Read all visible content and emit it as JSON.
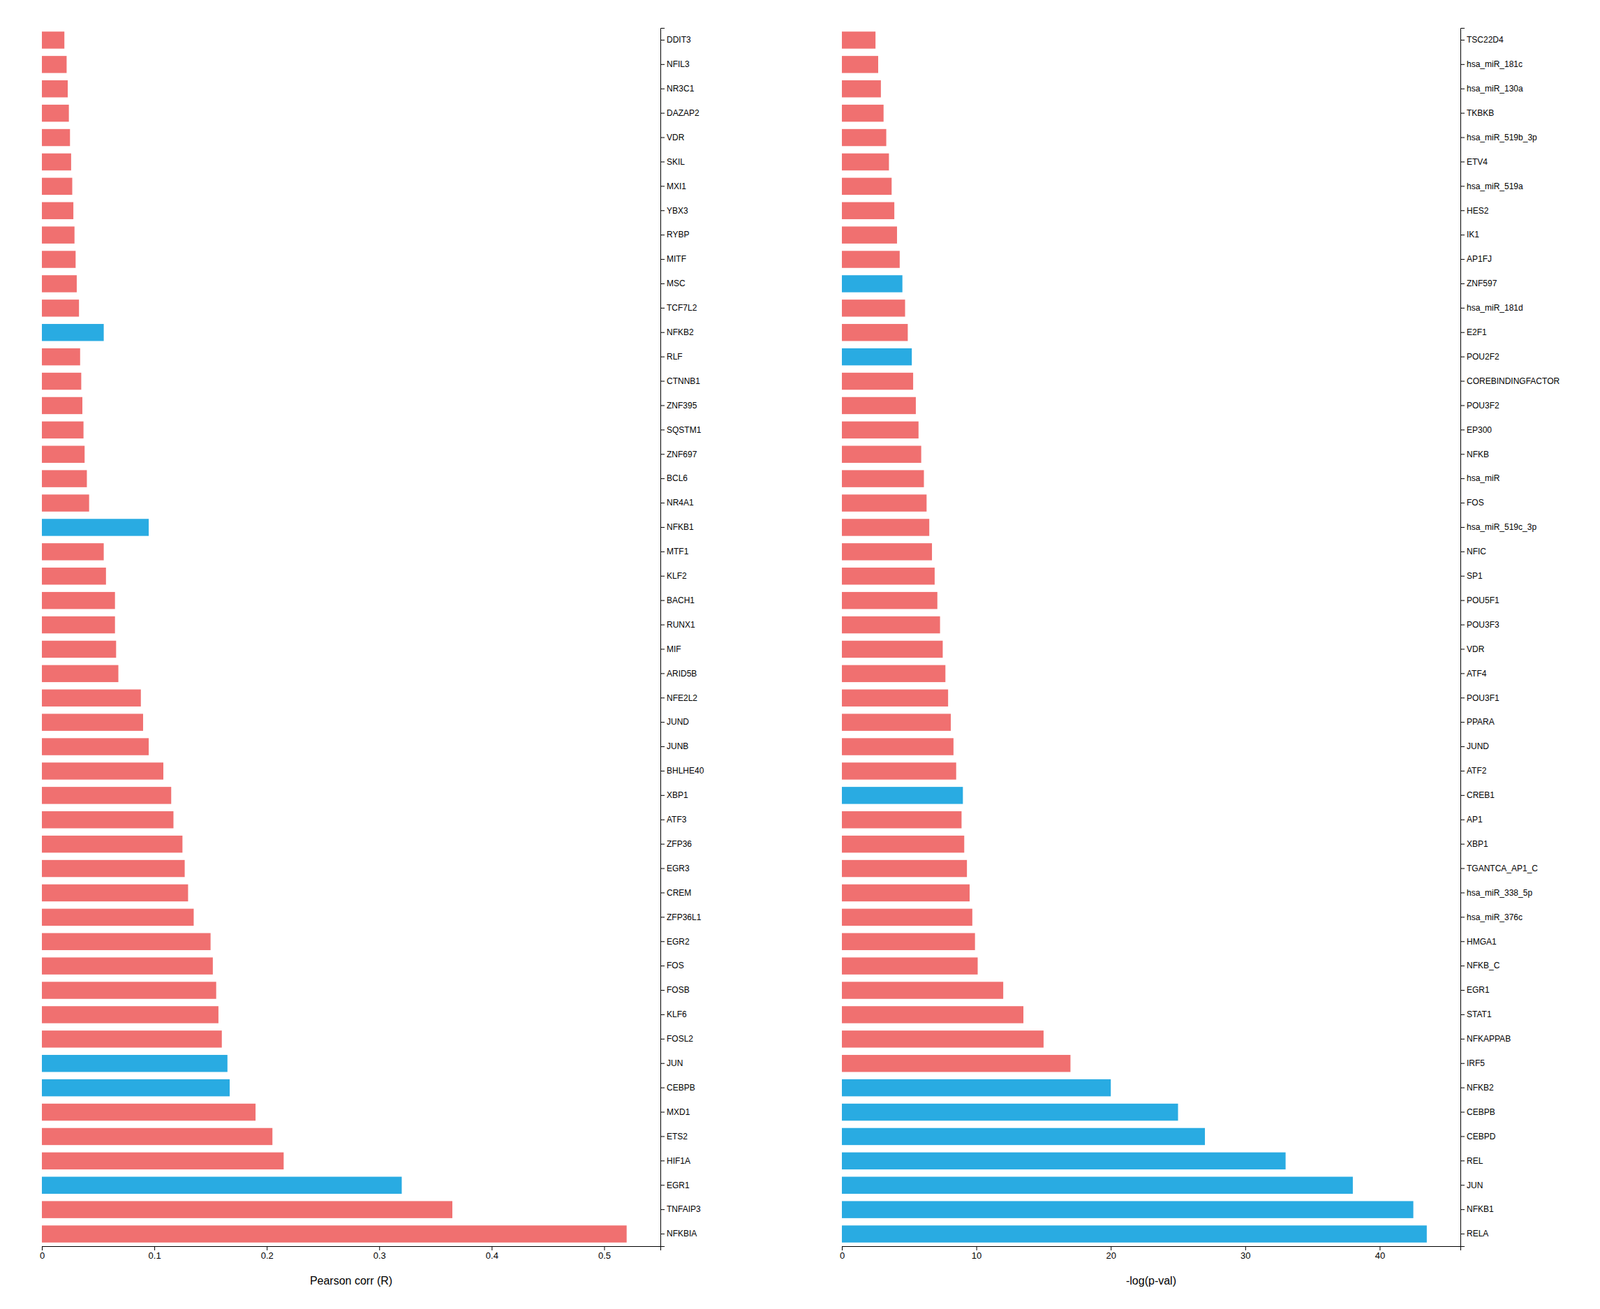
{
  "chart_data": [
    {
      "type": "bar",
      "orientation": "horizontal",
      "xlabel": "Pearson corr (R)",
      "categories": [
        "DDIT3",
        "NFIL3",
        "NR3C1",
        "DAZAP2",
        "VDR",
        "SKIL",
        "MXI1",
        "YBX3",
        "RYBP",
        "MITF",
        "MSC",
        "TCF7L2",
        "NFKB2",
        "RLF",
        "CTNNB1",
        "ZNF395",
        "SQSTM1",
        "ZNF697",
        "BCL6",
        "NR4A1",
        "NFKB1",
        "MTF1",
        "KLF2",
        "BACH1",
        "RUNX1",
        "MIF",
        "ARID5B",
        "NFE2L2",
        "JUND",
        "JUNB",
        "BHLHE40",
        "XBP1",
        "ATF3",
        "ZFP36",
        "EGR3",
        "CREM",
        "ZFP36L1",
        "EGR2",
        "FOS",
        "FOSB",
        "KLF6",
        "FOSL2",
        "JUN",
        "CEBPB",
        "MXD1",
        "ETS2",
        "HIF1A",
        "EGR1",
        "TNFAIP3",
        "NFKBIA"
      ],
      "values": [
        0.02,
        0.022,
        0.023,
        0.024,
        0.025,
        0.026,
        0.027,
        0.028,
        0.029,
        0.03,
        0.031,
        0.033,
        0.055,
        0.034,
        0.035,
        0.036,
        0.037,
        0.038,
        0.04,
        0.042,
        0.095,
        0.055,
        0.057,
        0.065,
        0.065,
        0.066,
        0.068,
        0.088,
        0.09,
        0.095,
        0.108,
        0.115,
        0.117,
        0.125,
        0.127,
        0.13,
        0.135,
        0.15,
        0.152,
        0.155,
        0.157,
        0.16,
        0.165,
        0.167,
        0.19,
        0.205,
        0.215,
        0.32,
        0.365,
        0.52
      ],
      "colors": [
        "#F07070",
        "#F07070",
        "#F07070",
        "#F07070",
        "#F07070",
        "#F07070",
        "#F07070",
        "#F07070",
        "#F07070",
        "#F07070",
        "#F07070",
        "#F07070",
        "#29ABE2",
        "#F07070",
        "#F07070",
        "#F07070",
        "#F07070",
        "#F07070",
        "#F07070",
        "#F07070",
        "#29ABE2",
        "#F07070",
        "#F07070",
        "#F07070",
        "#F07070",
        "#F07070",
        "#F07070",
        "#F07070",
        "#F07070",
        "#F07070",
        "#F07070",
        "#F07070",
        "#F07070",
        "#F07070",
        "#F07070",
        "#F07070",
        "#F07070",
        "#F07070",
        "#F07070",
        "#F07070",
        "#F07070",
        "#F07070",
        "#29ABE2",
        "#29ABE2",
        "#F07070",
        "#F07070",
        "#F07070",
        "#29ABE2",
        "#F07070",
        "#F07070"
      ],
      "xlim": [
        0,
        0.55
      ],
      "xticks": [
        0,
        0.1,
        0.2,
        0.3,
        0.4,
        0.5
      ]
    },
    {
      "type": "bar",
      "orientation": "horizontal",
      "xlabel": "-log(p-val)",
      "categories": [
        "TSC22D4",
        "hsa_miR_181c",
        "hsa_miR_130a",
        "TKBKB",
        "hsa_miR_519b_3p",
        "ETV4",
        "hsa_miR_519a",
        "HES2",
        "IK1",
        "AP1FJ",
        "ZNF597",
        "hsa_miR_181d",
        "E2F1",
        "POU2F2",
        "COREBINDINGFACTOR",
        "POU3F2",
        "EP300",
        "NFKB",
        "hsa_miR",
        "FOS",
        "hsa_miR_519c_3p",
        "NFIC",
        "SP1",
        "POU5F1",
        "POU3F3",
        "VDR",
        "ATF4",
        "POU3F1",
        "PPARA",
        "JUND",
        "ATF2",
        "CREB1",
        "AP1",
        "XBP1",
        "TGANTCA_AP1_C",
        "hsa_miR_338_5p",
        "hsa_miR_376c",
        "HMGA1",
        "NFKB_C",
        "EGR1",
        "STAT1",
        "NFKAPPAB",
        "IRF5",
        "NFKB2",
        "CEBPB",
        "CEBPD",
        "REL",
        "JUN",
        "NFKB1",
        "RELA"
      ],
      "values": [
        2.5,
        2.7,
        2.9,
        3.1,
        3.3,
        3.5,
        3.7,
        3.9,
        4.1,
        4.3,
        4.5,
        4.7,
        4.9,
        5.2,
        5.3,
        5.5,
        5.7,
        5.9,
        6.1,
        6.3,
        6.5,
        6.7,
        6.9,
        7.1,
        7.3,
        7.5,
        7.7,
        7.9,
        8.1,
        8.3,
        8.5,
        9.0,
        8.9,
        9.1,
        9.3,
        9.5,
        9.7,
        9.9,
        10.1,
        12.0,
        13.5,
        15.0,
        17.0,
        20.0,
        25.0,
        27.0,
        33.0,
        38.0,
        42.5,
        43.5
      ],
      "colors": [
        "#F07070",
        "#F07070",
        "#F07070",
        "#F07070",
        "#F07070",
        "#F07070",
        "#F07070",
        "#F07070",
        "#F07070",
        "#F07070",
        "#29ABE2",
        "#F07070",
        "#F07070",
        "#29ABE2",
        "#F07070",
        "#F07070",
        "#F07070",
        "#F07070",
        "#F07070",
        "#F07070",
        "#F07070",
        "#F07070",
        "#F07070",
        "#F07070",
        "#F07070",
        "#F07070",
        "#F07070",
        "#F07070",
        "#F07070",
        "#F07070",
        "#F07070",
        "#29ABE2",
        "#F07070",
        "#F07070",
        "#F07070",
        "#F07070",
        "#F07070",
        "#F07070",
        "#F07070",
        "#F07070",
        "#F07070",
        "#F07070",
        "#F07070",
        "#29ABE2",
        "#29ABE2",
        "#29ABE2",
        "#29ABE2",
        "#29ABE2",
        "#29ABE2",
        "#29ABE2"
      ],
      "xlim": [
        0,
        46
      ],
      "xticks": [
        0,
        10,
        20,
        30,
        40
      ]
    }
  ]
}
